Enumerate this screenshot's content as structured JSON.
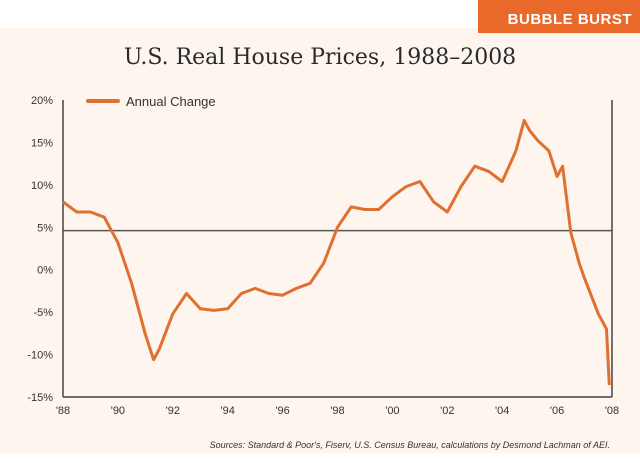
{
  "banner": "BUBBLE BURST",
  "source": "Sources: Standard & Poor's, Fiserv, U.S. Census Bureau, calculations by Desmond Lachman of AEI.",
  "colors": {
    "line": "#e07030",
    "banner": "#e8692a",
    "background": "#fdf5ee"
  },
  "chart_data": {
    "type": "line",
    "title": "U.S. Real House Prices, 1988–2008",
    "xlabel": "",
    "ylabel": "",
    "xlim": [
      1988,
      2008
    ],
    "ylim": [
      -15,
      20
    ],
    "reference_line": 4.6,
    "x_ticks": [
      1988,
      1990,
      1992,
      1994,
      1996,
      1998,
      2000,
      2002,
      2004,
      2006,
      2008
    ],
    "x_tick_labels": [
      "'88",
      "'90",
      "'92",
      "'94",
      "'96",
      "'98",
      "'00",
      "'02",
      "'04",
      "'06",
      "'08"
    ],
    "y_ticks": [
      20,
      15,
      10,
      5,
      0,
      -5,
      -10,
      -15
    ],
    "y_tick_labels": [
      "20%",
      "15%",
      "10%",
      "5%",
      "0%",
      "-5%",
      "-10%",
      "-15%"
    ],
    "legend": {
      "position": "top-left",
      "entries": [
        "Annual Change"
      ]
    },
    "series": [
      {
        "name": "Annual Change",
        "x": [
          1988,
          1988.5,
          1989,
          1989.5,
          1990,
          1990.5,
          1991,
          1991.3,
          1991.5,
          1992,
          1992.5,
          1993,
          1993.5,
          1994,
          1994.5,
          1995,
          1995.5,
          1996,
          1996.5,
          1997,
          1997.5,
          1998,
          1998.5,
          1999,
          1999.5,
          2000,
          2000.5,
          2001,
          2001.5,
          2002,
          2002.5,
          2003,
          2003.5,
          2004,
          2004.5,
          2004.8,
          2005,
          2005.3,
          2005.7,
          2006,
          2006.2,
          2006.5,
          2006.8,
          2007,
          2007.5,
          2007.8,
          2007.9
        ],
        "y": [
          8.0,
          6.8,
          6.8,
          6.2,
          3.2,
          -1.6,
          -7.6,
          -10.6,
          -9.4,
          -5.2,
          -2.8,
          -4.6,
          -4.8,
          -4.6,
          -2.8,
          -2.2,
          -2.8,
          -3.0,
          -2.2,
          -1.6,
          0.8,
          5.0,
          7.4,
          7.1,
          7.1,
          8.6,
          9.8,
          10.4,
          8.0,
          6.8,
          9.8,
          12.2,
          11.6,
          10.4,
          14.0,
          17.6,
          16.4,
          15.2,
          14.0,
          11.0,
          12.2,
          4.4,
          0.8,
          -1.0,
          -5.2,
          -7.0,
          -13.6
        ]
      }
    ]
  }
}
